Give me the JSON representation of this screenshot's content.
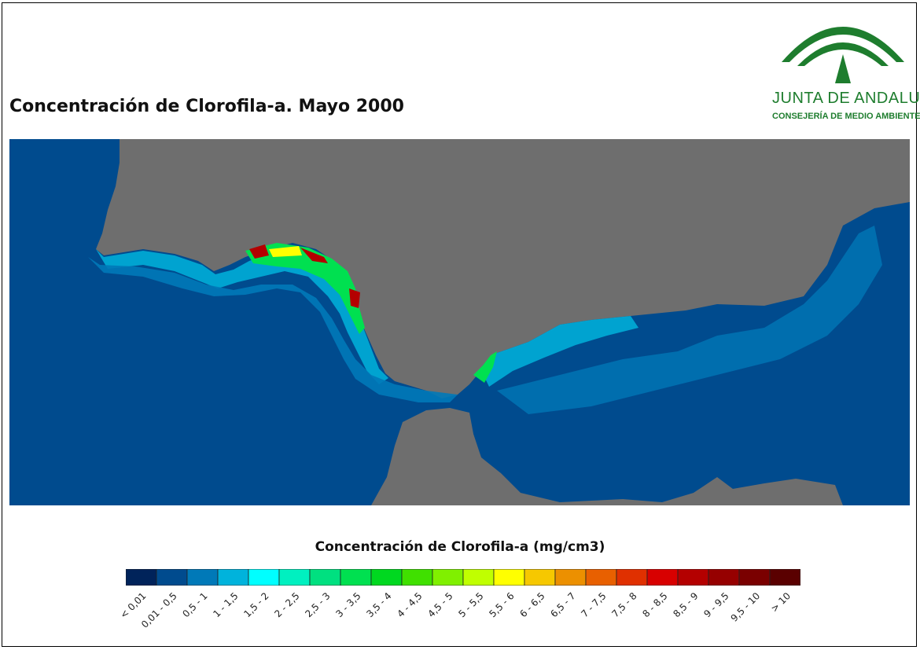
{
  "title": "Concentración de Clorofila-a. Mayo 2000",
  "logo": {
    "line1": "JUNTA DE ANDALUCIA",
    "line2": "CONSEJERÍA DE MEDIO AMBIENTE",
    "color": "#1e7d2e"
  },
  "legend": {
    "title": "Concentración de Clorofila-a (mg/cm3)",
    "classes": [
      {
        "label": "< 0,01",
        "color": "#00235a"
      },
      {
        "label": "0,01 - 0,5",
        "color": "#004b8e"
      },
      {
        "label": "0,5 - 1",
        "color": "#0079b8"
      },
      {
        "label": "1 - 1,5",
        "color": "#00b3dc"
      },
      {
        "label": "1,5 - 2",
        "color": "#00ffff"
      },
      {
        "label": "2 - 2,5",
        "color": "#00f0c0"
      },
      {
        "label": "2,5 - 3",
        "color": "#00e080"
      },
      {
        "label": "3 - 3,5",
        "color": "#00e050"
      },
      {
        "label": "3,5 - 4",
        "color": "#00d820"
      },
      {
        "label": "4 - 4,5",
        "color": "#40e000"
      },
      {
        "label": "4,5 - 5",
        "color": "#80f000"
      },
      {
        "label": "5 - 5,5",
        "color": "#c0ff00"
      },
      {
        "label": "5,5 - 6",
        "color": "#ffff00"
      },
      {
        "label": "6 - 6,5",
        "color": "#f6c800"
      },
      {
        "label": "6,5 - 7",
        "color": "#ec9000"
      },
      {
        "label": "7 - 7,5",
        "color": "#e86000"
      },
      {
        "label": "7,5 - 8",
        "color": "#e03000"
      },
      {
        "label": "8 - 8,5",
        "color": "#d80000"
      },
      {
        "label": "8,5 - 9",
        "color": "#b40000"
      },
      {
        "label": "9 - 9,5",
        "color": "#960000"
      },
      {
        "label": "9,5 - 10",
        "color": "#7a0000"
      },
      {
        "label": "> 10",
        "color": "#5a0000"
      }
    ]
  },
  "map_colors": {
    "land": "#6e6e6e",
    "ocean": "#004b8e"
  }
}
